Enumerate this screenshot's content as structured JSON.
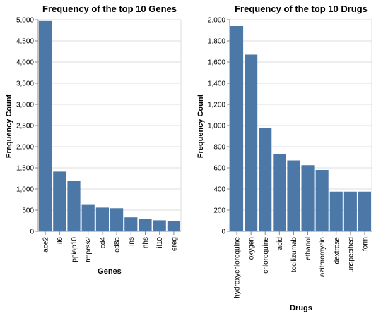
{
  "chart_data": [
    {
      "type": "bar",
      "title": "Frequency of the top 10 Genes",
      "xlabel": "Genes",
      "ylabel": "Frequency Count",
      "ylim": [
        0,
        5000
      ],
      "yticks": [
        0,
        500,
        1000,
        1500,
        2000,
        2500,
        3000,
        3500,
        4000,
        4500,
        5000
      ],
      "ytick_labels": [
        "0",
        "500",
        "1,000",
        "1,500",
        "2,000",
        "2,500",
        "3,000",
        "3,500",
        "4,000",
        "4,500",
        "5,000"
      ],
      "categories": [
        "ace2",
        "il6",
        "ppiap10",
        "tmprss2",
        "cd4",
        "cd8a",
        "ins",
        "nhs",
        "il10",
        "ereg"
      ],
      "values": [
        4970,
        1410,
        1190,
        640,
        560,
        545,
        330,
        300,
        260,
        245
      ],
      "bar_color": "#4c78a8",
      "grid": true
    },
    {
      "type": "bar",
      "title": "Frequency of the top 10 Drugs",
      "xlabel": "Drugs",
      "ylabel": "Frequency Count",
      "ylim": [
        0,
        2000
      ],
      "yticks": [
        0,
        200,
        400,
        600,
        800,
        1000,
        1200,
        1400,
        1600,
        1800,
        2000
      ],
      "ytick_labels": [
        "0",
        "200",
        "400",
        "600",
        "800",
        "1,000",
        "1,200",
        "1,400",
        "1,600",
        "1,800",
        "2,000"
      ],
      "categories": [
        "hydroxychloroquine",
        "oxygen",
        "chloroquine",
        "acid",
        "tocilizumab",
        "ethanol",
        "azithromycin",
        "dextrose",
        "unspecified",
        "form"
      ],
      "values": [
        1940,
        1670,
        975,
        730,
        670,
        625,
        580,
        375,
        375,
        375
      ],
      "bar_color": "#4c78a8",
      "grid": true
    }
  ]
}
